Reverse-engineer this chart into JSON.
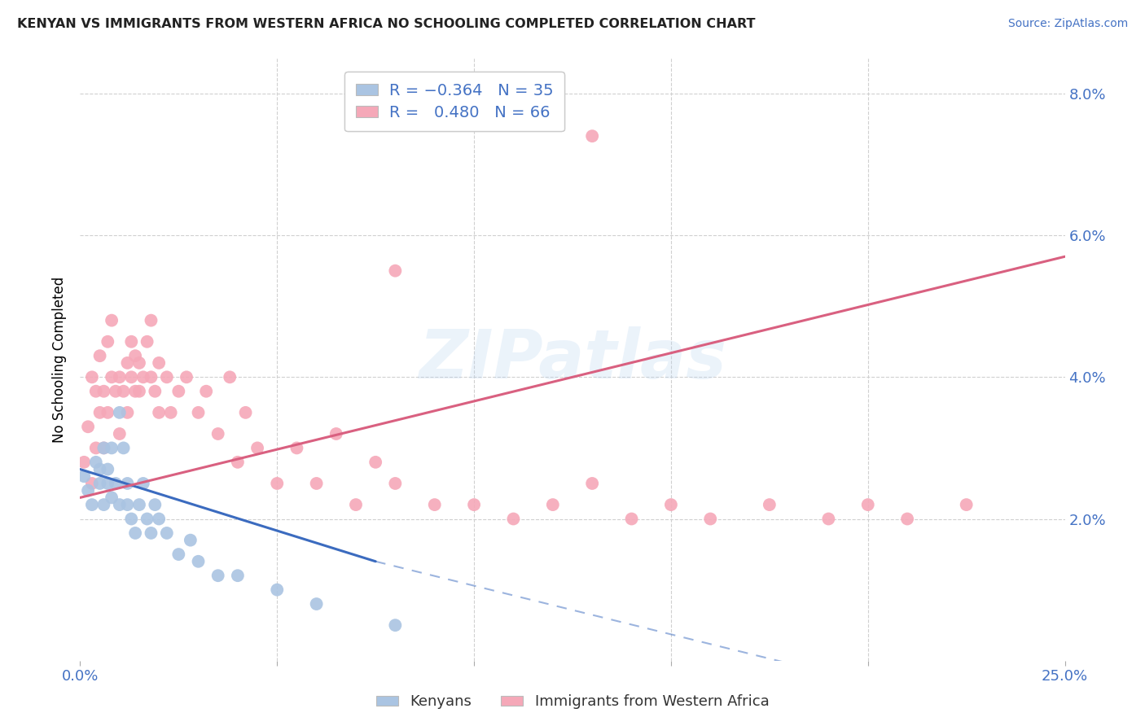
{
  "title": "KENYAN VS IMMIGRANTS FROM WESTERN AFRICA NO SCHOOLING COMPLETED CORRELATION CHART",
  "source": "Source: ZipAtlas.com",
  "ylabel": "No Schooling Completed",
  "xlim": [
    0.0,
    0.25
  ],
  "ylim": [
    0.0,
    0.085
  ],
  "kenyan_R": -0.364,
  "kenyan_N": 35,
  "western_africa_R": 0.48,
  "western_africa_N": 66,
  "kenyan_dot_color": "#aac4e2",
  "western_dot_color": "#f5a8b8",
  "kenyan_line_color": "#3b6bbf",
  "western_line_color": "#d96080",
  "tick_color": "#4472c4",
  "watermark": "ZIPatlas",
  "legend_label_kenyan": "Kenyans",
  "legend_label_western": "Immigrants from Western Africa",
  "title_fontsize": 11.5,
  "source_fontsize": 10,
  "grid_color": "#d0d0d0",
  "kenyan_x": [
    0.001,
    0.002,
    0.003,
    0.004,
    0.005,
    0.005,
    0.006,
    0.006,
    0.007,
    0.007,
    0.008,
    0.008,
    0.009,
    0.01,
    0.01,
    0.011,
    0.012,
    0.012,
    0.013,
    0.014,
    0.015,
    0.016,
    0.017,
    0.018,
    0.019,
    0.02,
    0.022,
    0.025,
    0.028,
    0.03,
    0.035,
    0.04,
    0.05,
    0.06,
    0.08
  ],
  "kenyan_y": [
    0.026,
    0.024,
    0.022,
    0.028,
    0.027,
    0.025,
    0.03,
    0.022,
    0.025,
    0.027,
    0.023,
    0.03,
    0.025,
    0.022,
    0.035,
    0.03,
    0.022,
    0.025,
    0.02,
    0.018,
    0.022,
    0.025,
    0.02,
    0.018,
    0.022,
    0.02,
    0.018,
    0.015,
    0.017,
    0.014,
    0.012,
    0.012,
    0.01,
    0.008,
    0.005
  ],
  "western_x": [
    0.001,
    0.002,
    0.003,
    0.003,
    0.004,
    0.004,
    0.005,
    0.005,
    0.006,
    0.006,
    0.007,
    0.007,
    0.008,
    0.008,
    0.009,
    0.01,
    0.01,
    0.011,
    0.012,
    0.012,
    0.013,
    0.013,
    0.014,
    0.014,
    0.015,
    0.015,
    0.016,
    0.017,
    0.018,
    0.018,
    0.019,
    0.02,
    0.02,
    0.022,
    0.023,
    0.025,
    0.027,
    0.03,
    0.032,
    0.035,
    0.038,
    0.04,
    0.042,
    0.045,
    0.05,
    0.055,
    0.06,
    0.065,
    0.07,
    0.075,
    0.08,
    0.09,
    0.1,
    0.11,
    0.12,
    0.13,
    0.14,
    0.15,
    0.16,
    0.175,
    0.19,
    0.2,
    0.21,
    0.225,
    0.13,
    0.08
  ],
  "western_y": [
    0.028,
    0.033,
    0.025,
    0.04,
    0.03,
    0.038,
    0.035,
    0.043,
    0.03,
    0.038,
    0.035,
    0.045,
    0.04,
    0.048,
    0.038,
    0.032,
    0.04,
    0.038,
    0.042,
    0.035,
    0.04,
    0.045,
    0.038,
    0.043,
    0.042,
    0.038,
    0.04,
    0.045,
    0.04,
    0.048,
    0.038,
    0.042,
    0.035,
    0.04,
    0.035,
    0.038,
    0.04,
    0.035,
    0.038,
    0.032,
    0.04,
    0.028,
    0.035,
    0.03,
    0.025,
    0.03,
    0.025,
    0.032,
    0.022,
    0.028,
    0.025,
    0.022,
    0.022,
    0.02,
    0.022,
    0.025,
    0.02,
    0.022,
    0.02,
    0.022,
    0.02,
    0.022,
    0.02,
    0.022,
    0.074,
    0.055
  ]
}
